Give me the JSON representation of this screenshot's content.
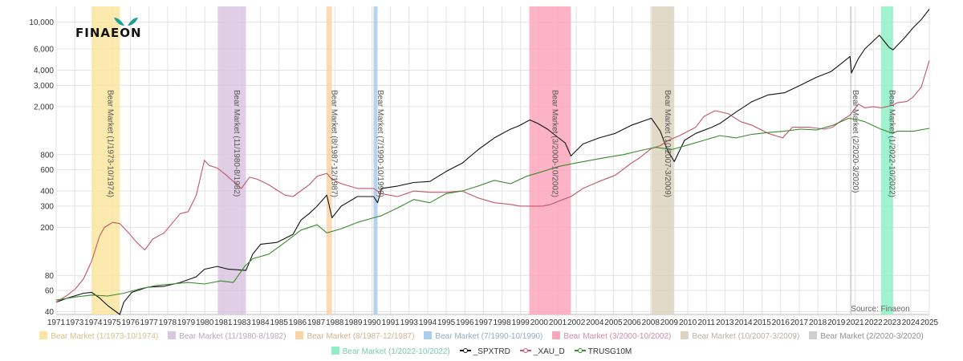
{
  "logo": {
    "text": "FINAEON",
    "mark_color": "#1e9e8e"
  },
  "chart_data": {
    "type": "line",
    "yscale": "log",
    "xlim": [
      1970.8,
      2025.0
    ],
    "ylim": [
      38,
      13500
    ],
    "grid": true,
    "legend_position": "bottom",
    "source_note": "Source: Finaeon",
    "x_ticks": [
      "1971",
      "1973",
      "1974",
      "1975",
      "1976",
      "1977",
      "1978",
      "1979",
      "1980",
      "1981",
      "1983",
      "1984",
      "1985",
      "1986",
      "1987",
      "1988",
      "1989",
      "1990",
      "1991",
      "1993",
      "1994",
      "1995",
      "1996",
      "1997",
      "1998",
      "1999",
      "2000",
      "2001",
      "2002",
      "2004",
      "2005",
      "2006",
      "2008",
      "2009",
      "2010",
      "2011",
      "2013",
      "2014",
      "2015",
      "2016",
      "2017",
      "2018",
      "2019",
      "2021",
      "2022",
      "2023",
      "2024",
      "2025"
    ],
    "y_ticks": [
      "40",
      "60",
      "80",
      "200",
      "300",
      "400",
      "600",
      "800",
      "2,000",
      "3,000",
      "4,000",
      "6,000",
      "10,000"
    ],
    "bands": [
      {
        "label": "Bear Market (1/1973-10/1974)",
        "start": 1973.0,
        "end": 1974.75,
        "color": "#fbe5a0"
      },
      {
        "label": "Bear Market (11/1980-8/1982)",
        "start": 1980.83,
        "end": 1982.58,
        "color": "#d9c6e0"
      },
      {
        "label": "Bear Market (8/1987-12/1987)",
        "start": 1987.58,
        "end": 1987.92,
        "color": "#fdd3a6"
      },
      {
        "label": "Bear Market (7/1990-10/1990)",
        "start": 1990.5,
        "end": 1990.75,
        "color": "#a9ccf0"
      },
      {
        "label": "Bear Market (3/2000-10/2002)",
        "start": 2000.17,
        "end": 2002.75,
        "color": "#fca6bc"
      },
      {
        "label": "Bear Market (10/2007-3/2009)",
        "start": 2007.75,
        "end": 2009.17,
        "color": "#ddd3be"
      },
      {
        "label": "Bear Market (2/2020-3/2020)",
        "start": 2020.08,
        "end": 2020.17,
        "color": "#cfcfcf"
      },
      {
        "label": "Bear Market (1/2022-10/2022)",
        "start": 2022.0,
        "end": 2022.75,
        "color": "#8ff0c8"
      }
    ],
    "series": [
      {
        "name": "_SPXTRD",
        "color": "#111111",
        "x": [
          1970.8,
          1971.5,
          1972.5,
          1973.0,
          1973.5,
          1974.0,
          1974.75,
          1975.0,
          1975.5,
          1976.5,
          1977.5,
          1978.5,
          1979.5,
          1980.0,
          1980.8,
          1981.5,
          1982.58,
          1983.0,
          1983.5,
          1984.5,
          1985.5,
          1986.0,
          1986.5,
          1987.0,
          1987.6,
          1987.92,
          1988.5,
          1989.5,
          1990.5,
          1990.75,
          1991.0,
          1992.0,
          1993.0,
          1994.0,
          1995.0,
          1996.0,
          1997.0,
          1998.0,
          1999.0,
          1999.5,
          2000.2,
          2000.7,
          2001.3,
          2001.8,
          2002.4,
          2002.75,
          2003.5,
          2004.5,
          2005.5,
          2006.5,
          2007.75,
          2008.3,
          2008.7,
          2009.17,
          2009.8,
          2010.5,
          2011.5,
          2012.0,
          2013.0,
          2014.0,
          2015.0,
          2016.0,
          2017.0,
          2018.0,
          2018.9,
          2019.5,
          2020.08,
          2020.17,
          2020.6,
          2021.0,
          2021.9,
          2022.5,
          2022.75,
          2023.5,
          2024.0,
          2024.5,
          2025.0
        ],
        "values": [
          48,
          52,
          57,
          58,
          52,
          45,
          38,
          48,
          58,
          64,
          65,
          70,
          78,
          90,
          95,
          90,
          88,
          120,
          145,
          150,
          175,
          230,
          260,
          300,
          370,
          240,
          300,
          360,
          360,
          320,
          420,
          440,
          470,
          480,
          580,
          680,
          880,
          1100,
          1300,
          1380,
          1550,
          1450,
          1300,
          1150,
          1000,
          780,
          980,
          1100,
          1200,
          1400,
          1600,
          1250,
          900,
          700,
          1050,
          1200,
          1350,
          1450,
          1800,
          2200,
          2500,
          2600,
          3000,
          3500,
          3900,
          4500,
          5200,
          3800,
          5000,
          6000,
          7800,
          6200,
          5900,
          7500,
          9000,
          10500,
          12800
        ]
      },
      {
        "name": "_XAU_D",
        "color": "#c2566a",
        "x": [
          1970.8,
          1971.5,
          1972.0,
          1972.5,
          1973.0,
          1973.5,
          1973.8,
          1974.3,
          1974.75,
          1975.3,
          1975.8,
          1976.3,
          1976.8,
          1977.5,
          1978.5,
          1979.0,
          1979.5,
          1980.0,
          1980.3,
          1980.8,
          1981.3,
          1981.8,
          1982.3,
          1982.8,
          1983.3,
          1984.0,
          1985.0,
          1985.5,
          1986.5,
          1987.0,
          1987.6,
          1987.92,
          1988.5,
          1989.5,
          1990.5,
          1991.0,
          1992.0,
          1993.0,
          1994.0,
          1995.0,
          1996.0,
          1997.0,
          1998.0,
          1999.0,
          1999.6,
          2000.2,
          2001.0,
          2001.5,
          2002.0,
          2002.75,
          2003.5,
          2004.5,
          2005.5,
          2006.5,
          2007.0,
          2007.75,
          2008.3,
          2008.8,
          2009.5,
          2010.5,
          2011.0,
          2011.7,
          2012.5,
          2013.3,
          2014.0,
          2015.0,
          2015.9,
          2016.5,
          2017.5,
          2018.5,
          2019.0,
          2019.6,
          2020.08,
          2020.6,
          2021.0,
          2021.5,
          2022.0,
          2022.75,
          2023.0,
          2023.6,
          2024.0,
          2024.5,
          2025.0
        ],
        "values": [
          48,
          55,
          62,
          75,
          105,
          170,
          200,
          220,
          215,
          180,
          150,
          130,
          160,
          180,
          260,
          270,
          370,
          720,
          650,
          620,
          550,
          480,
          420,
          520,
          500,
          450,
          370,
          360,
          450,
          530,
          560,
          500,
          460,
          420,
          420,
          380,
          360,
          400,
          390,
          390,
          400,
          350,
          320,
          310,
          300,
          300,
          300,
          310,
          330,
          360,
          420,
          480,
          540,
          680,
          750,
          900,
          950,
          1050,
          1150,
          1350,
          1650,
          1850,
          1750,
          1500,
          1400,
          1200,
          1100,
          1350,
          1350,
          1300,
          1350,
          1550,
          1700,
          2100,
          1950,
          2000,
          1950,
          2050,
          2150,
          2200,
          2400,
          2900,
          4800
        ]
      },
      {
        "name": "TRUSG10M",
        "color": "#3b8a2f",
        "x": [
          1970.8,
          1972.0,
          1973.0,
          1974.0,
          1975.0,
          1976.0,
          1977.0,
          1978.0,
          1979.0,
          1980.0,
          1981.0,
          1981.8,
          1982.5,
          1983.0,
          1984.0,
          1985.0,
          1986.0,
          1987.0,
          1987.6,
          1988.5,
          1989.5,
          1990.5,
          1991.0,
          1992.0,
          1993.0,
          1994.0,
          1995.0,
          1996.0,
          1997.0,
          1998.0,
          1999.0,
          2000.0,
          2001.0,
          2002.0,
          2003.0,
          2004.0,
          2005.0,
          2006.0,
          2007.0,
          2008.0,
          2009.0,
          2010.0,
          2011.0,
          2012.0,
          2013.0,
          2014.0,
          2015.0,
          2016.0,
          2017.0,
          2018.0,
          2019.0,
          2020.0,
          2020.6,
          2021.0,
          2022.0,
          2022.75,
          2023.0,
          2024.0,
          2025.0
        ],
        "values": [
          50,
          53,
          55,
          54,
          57,
          62,
          66,
          68,
          70,
          68,
          72,
          70,
          95,
          110,
          120,
          150,
          190,
          210,
          180,
          195,
          220,
          240,
          250,
          290,
          340,
          320,
          380,
          400,
          440,
          490,
          460,
          530,
          580,
          640,
          680,
          720,
          760,
          800,
          860,
          920,
          880,
          960,
          1050,
          1150,
          1100,
          1180,
          1220,
          1250,
          1300,
          1280,
          1400,
          1600,
          1550,
          1500,
          1300,
          1200,
          1250,
          1250,
          1320
        ]
      }
    ]
  }
}
